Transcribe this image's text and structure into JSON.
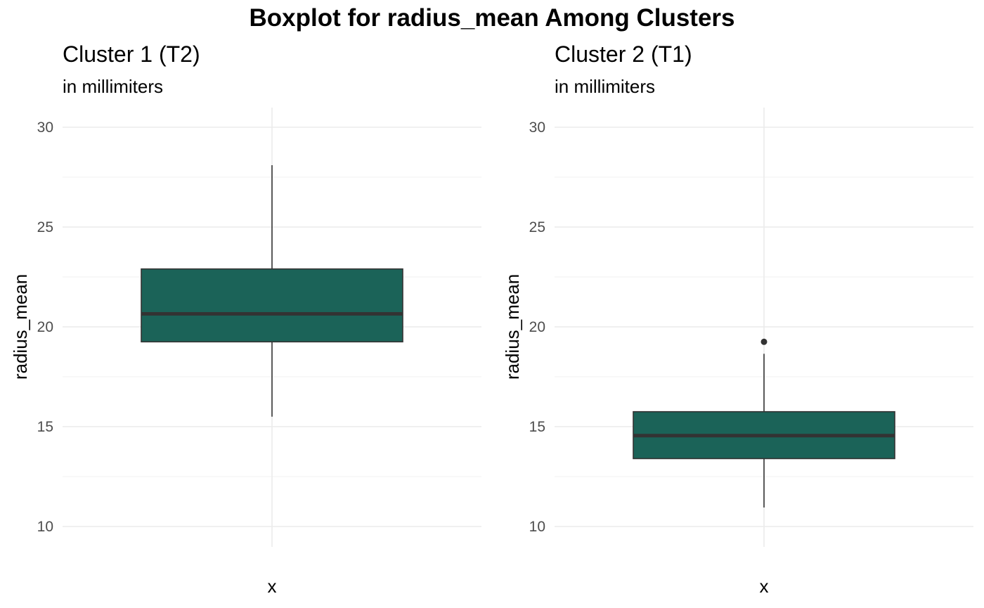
{
  "title": "Boxplot for radius_mean Among Clusters",
  "chart_data": [
    {
      "type": "box",
      "title": "Cluster 1 (T2)",
      "subtitle": "in millimiters",
      "xlabel": "x",
      "ylabel": "radius_mean",
      "ylim": [
        9,
        31
      ],
      "yticks": [
        10,
        15,
        20,
        25,
        30
      ],
      "grid": true,
      "box": {
        "whisker_low": 15.5,
        "q1": 19.25,
        "median": 20.65,
        "q3": 22.9,
        "whisker_high": 28.1,
        "outliers": []
      },
      "fill": "#1b6358"
    },
    {
      "type": "box",
      "title": "Cluster 2 (T1)",
      "subtitle": "in millimiters",
      "xlabel": "x",
      "ylabel": "radius_mean",
      "ylim": [
        9,
        31
      ],
      "yticks": [
        10,
        15,
        20,
        25,
        30
      ],
      "grid": true,
      "box": {
        "whisker_low": 10.95,
        "q1": 13.4,
        "median": 14.55,
        "q3": 15.75,
        "whisker_high": 18.65,
        "outliers": [
          19.25
        ]
      },
      "fill": "#1b6358"
    }
  ],
  "colors": {
    "box_fill": "#1b6358",
    "box_line": "#333333",
    "grid": "#ebebeb",
    "tick_text": "#4d4d4d"
  }
}
